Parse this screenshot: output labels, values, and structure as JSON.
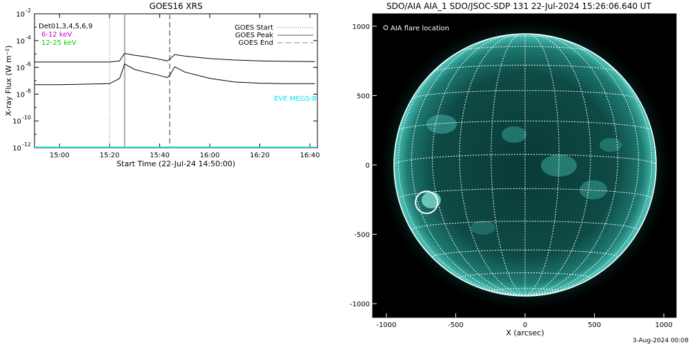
{
  "chart_data": [
    {
      "type": "line",
      "title": "GOES16 XRS",
      "xlabel": "Start Time (22-Jul-24 14:50:00)",
      "ylabel": "X-ray Flux (W m⁻²)",
      "ylog": true,
      "ylim": [
        1e-12,
        0.01
      ],
      "x_tick_labels": [
        "15:00",
        "15:20",
        "15:40",
        "16:00",
        "16:20",
        "16:40"
      ],
      "y_tick_labels": [
        {
          "base": "10",
          "exp": "-2"
        },
        {
          "base": "10",
          "exp": "-4"
        },
        {
          "base": "10",
          "exp": "-6"
        },
        {
          "base": "10",
          "exp": "-8"
        },
        {
          "base": "10",
          "exp": "-10"
        },
        {
          "base": "10",
          "exp": "-12"
        }
      ],
      "annotations": {
        "detectors": "Det01,3,4,5,6,9",
        "band_low": "6-12 keV",
        "band_high": "12-25 keV",
        "eve": "EVE MEGS-B"
      },
      "legend": {
        "placement": "top-right",
        "items": [
          "GOES Start",
          "GOES Peak",
          "GOES End"
        ]
      },
      "markers": {
        "goes_start": "15:20",
        "goes_peak": "15:26",
        "goes_end": "15:44"
      },
      "series": [
        {
          "name": "",
          "color": "#000000",
          "x": [
            "14:50",
            "15:00",
            "15:10",
            "15:20",
            "15:24",
            "15:25",
            "15:26",
            "15:30",
            "15:35",
            "15:40",
            "15:43",
            "15:44",
            "15:46",
            "15:50",
            "16:00",
            "16:10",
            "16:20",
            "16:30",
            "16:42"
          ],
          "y": [
            2.5e-06,
            2.5e-06,
            2.5e-06,
            2.5e-06,
            3e-06,
            6e-06,
            1.1e-05,
            8e-06,
            6e-06,
            4e-06,
            3e-06,
            4e-06,
            9e-06,
            7e-06,
            4.5e-06,
            3.5e-06,
            3e-06,
            2.8e-06,
            2.7e-06
          ]
        },
        {
          "name": "",
          "color": "#000000",
          "x": [
            "14:50",
            "15:00",
            "15:10",
            "15:20",
            "15:24",
            "15:25",
            "15:26",
            "15:30",
            "15:35",
            "15:40",
            "15:43",
            "15:44",
            "15:46",
            "15:50",
            "16:00",
            "16:10",
            "16:20",
            "16:30",
            "16:42"
          ],
          "y": [
            5e-08,
            5e-08,
            5.5e-08,
            6e-08,
            1.5e-07,
            5e-07,
            1.8e-06,
            7e-07,
            4e-07,
            2.5e-07,
            1.7e-07,
            2.5e-07,
            1.1e-06,
            4.5e-07,
            1.5e-07,
            8e-08,
            6.5e-08,
            6e-08,
            6e-08
          ]
        },
        {
          "name": "",
          "color": "#00e5ee",
          "x": [
            "14:50",
            "16:42"
          ],
          "y": [
            1e-12,
            1e-12
          ]
        }
      ]
    },
    {
      "type": "scatter",
      "title": "SDO/AIA AIA_1 SDO/JSOC-SDP 131 22-Jul-2024 15:26:06.640 UT",
      "xlabel": "X (arcsec)",
      "ylabel": "",
      "xlim": [
        -1100,
        1150
      ],
      "ylim": [
        -1100,
        1100
      ],
      "x_tick_labels": [
        "-1000",
        "-500",
        "0",
        "500",
        "1000"
      ],
      "y_tick_labels": [
        "1000",
        "500",
        "0",
        "-500",
        "-1000"
      ],
      "legend_label": "AIA flare location",
      "flare_location": {
        "x": -710,
        "y": -270
      },
      "solar_radius_arcsec": 945,
      "grid": true,
      "footer": "3-Aug-2024 00:08"
    }
  ]
}
